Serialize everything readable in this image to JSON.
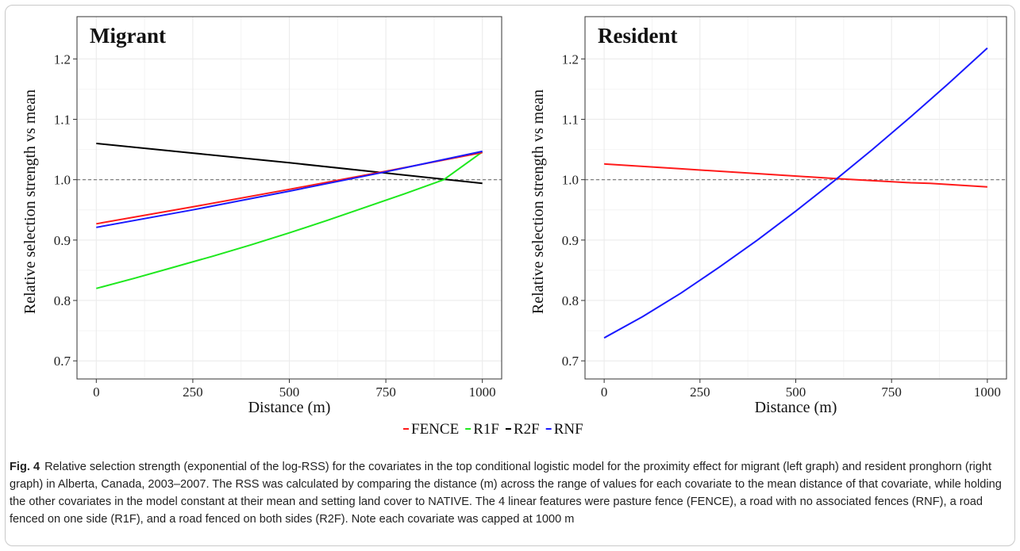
{
  "colors": {
    "FENCE": "#ff1a1a",
    "R1F": "#1ee81e",
    "R2F": "#000000",
    "RNF": "#1a1aff",
    "grid": "#ebebeb",
    "reference": "#7f7f7f"
  },
  "legend": {
    "position": "bottom-center",
    "items": [
      "FENCE",
      "R1F",
      "R2F",
      "RNF"
    ]
  },
  "chart_data": [
    {
      "type": "line",
      "title": "Migrant",
      "xlabel": "Distance (m)",
      "ylabel": "Relative selection strength vs mean",
      "xlim": [
        -50,
        1050
      ],
      "ylim": [
        0.67,
        1.27
      ],
      "xticks": [
        0,
        250,
        500,
        750,
        1000
      ],
      "yticks": [
        0.7,
        0.8,
        0.9,
        1.0,
        1.1,
        1.2
      ],
      "xtick_labels": [
        "0",
        "250",
        "500",
        "750",
        "1000"
      ],
      "ytick_labels": [
        "0.7",
        "0.8",
        "0.9",
        "1.0",
        "1.1",
        "1.2"
      ],
      "reference_line": 1.0,
      "grid": true,
      "series": [
        {
          "name": "R2F",
          "x": [
            0,
            250,
            500,
            750,
            1000
          ],
          "y": [
            1.06,
            1.044,
            1.028,
            1.011,
            0.994
          ]
        },
        {
          "name": "R1F",
          "x": [
            0,
            100,
            200,
            300,
            400,
            500,
            600,
            700,
            800,
            900,
            1000
          ],
          "y": [
            0.82,
            0.837,
            0.855,
            0.873,
            0.892,
            0.912,
            0.933,
            0.955,
            0.977,
            1.0,
            1.046
          ]
        },
        {
          "name": "FENCE",
          "x": [
            0,
            250,
            500,
            750,
            1000
          ],
          "y": [
            0.927,
            0.955,
            0.984,
            1.014,
            1.045
          ]
        },
        {
          "name": "RNF",
          "x": [
            0,
            250,
            500,
            750,
            1000
          ],
          "y": [
            0.921,
            0.95,
            0.981,
            1.013,
            1.047
          ]
        }
      ]
    },
    {
      "type": "line",
      "title": "Resident",
      "xlabel": "Distance (m)",
      "ylabel": "Relative selection strength vs mean",
      "xlim": [
        -50,
        1050
      ],
      "ylim": [
        0.67,
        1.27
      ],
      "xticks": [
        0,
        250,
        500,
        750,
        1000
      ],
      "yticks": [
        0.7,
        0.8,
        0.9,
        1.0,
        1.1,
        1.2
      ],
      "xtick_labels": [
        "0",
        "250",
        "500",
        "750",
        "1000"
      ],
      "ytick_labels": [
        "0.7",
        "0.8",
        "0.9",
        "1.0",
        "1.1",
        "1.2"
      ],
      "reference_line": 1.0,
      "grid": true,
      "series": [
        {
          "name": "FENCE",
          "x": [
            0,
            200,
            400,
            600,
            800,
            850,
            1000
          ],
          "y": [
            1.026,
            1.018,
            1.01,
            1.002,
            0.995,
            0.994,
            0.988
          ]
        },
        {
          "name": "RNF",
          "x": [
            0,
            100,
            200,
            300,
            400,
            500,
            600,
            700,
            800,
            900,
            1000
          ],
          "y": [
            0.738,
            0.773,
            0.812,
            0.855,
            0.9,
            0.948,
            0.998,
            1.05,
            1.104,
            1.16,
            1.218
          ]
        }
      ]
    }
  ],
  "caption": {
    "label": "Fig. 4",
    "text": "Relative selection strength (exponential of the log-RSS) for the covariates in the top conditional logistic model for the proximity effect for migrant (left graph) and resident pronghorn (right graph) in Alberta, Canada, 2003–2007. The RSS was calculated by comparing the distance (m) across the range of values for each covariate to the mean distance of that covariate, while holding the other covariates in the model constant at their mean and setting land cover to NATIVE. The 4 linear features were pasture fence (FENCE), a road with no associated fences (RNF), a road fenced on one side (R1F), and a road fenced on both sides (R2F). Note each covariate was capped at 1000 m"
  }
}
